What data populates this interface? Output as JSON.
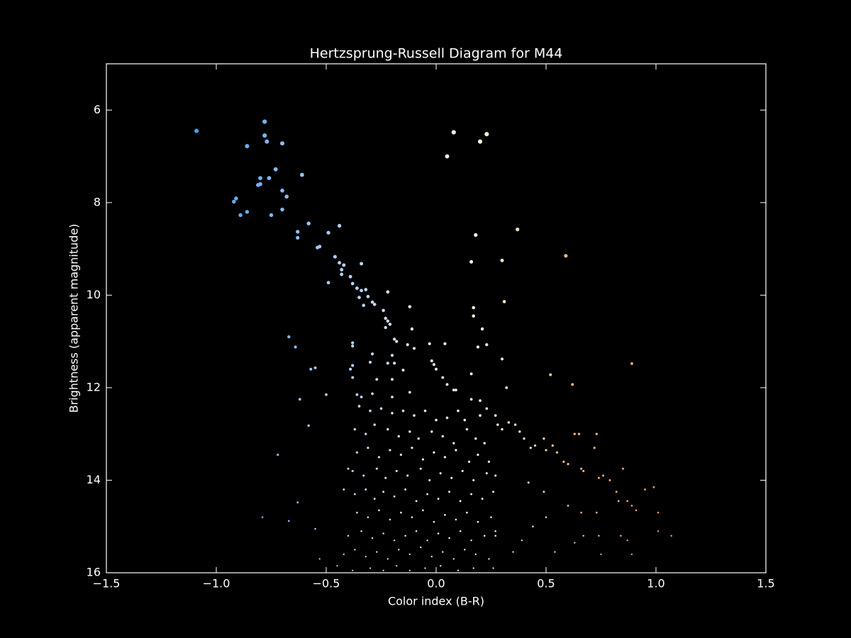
{
  "chart_data": {
    "type": "scatter",
    "title": "Hertzsprung-Russell Diagram for M44",
    "xlabel": "Color index (B-R)",
    "ylabel": "Brightness (apparent magnitude)",
    "xlim": [
      -1.5,
      1.5
    ],
    "ylim": [
      5,
      16
    ],
    "y_inverted": true,
    "xticks": [
      {
        "value": -1.5,
        "label": "−1.5"
      },
      {
        "value": -1.0,
        "label": "−1.0"
      },
      {
        "value": -0.5,
        "label": "−0.5"
      },
      {
        "value": 0,
        "label": "0.0"
      },
      0.5,
      {
        "value": 1.0,
        "label": "1.0"
      },
      1.5
    ],
    "yticks": [
      6,
      8,
      10,
      12,
      14,
      16
    ],
    "background": "#000000",
    "foreground": "#ffffff",
    "colormap": [
      {
        "value": -1.1,
        "color": "#4a98f0"
      },
      {
        "value": -0.4,
        "color": "#b4d2f2"
      },
      {
        "value": 0.0,
        "color": "#e8e8ee"
      },
      {
        "value": 0.2,
        "color": "#fff0da"
      },
      {
        "value": 0.6,
        "color": "#f2b888"
      },
      {
        "value": 1.0,
        "color": "#e08e52"
      }
    ],
    "x": [
      -1.09,
      -0.78,
      -0.78,
      -0.77,
      -0.86,
      -0.7,
      0.08,
      0.23,
      0.2,
      0.05,
      -0.73,
      -0.61,
      -0.8,
      -0.76,
      -0.81,
      -0.8,
      -0.7,
      -0.68,
      -0.91,
      -0.92,
      -0.86,
      -0.89,
      -0.75,
      -0.7,
      -0.58,
      -0.44,
      -0.49,
      -0.63,
      -0.63,
      -0.54,
      -0.53,
      0.37,
      0.18,
      0.59,
      -0.46,
      -0.44,
      -0.42,
      -0.43,
      -0.43,
      -0.34,
      0.16,
      0.3,
      -0.39,
      -0.38,
      -0.49,
      -0.36,
      -0.34,
      -0.32,
      -0.35,
      -0.31,
      -0.22,
      -0.29,
      -0.33,
      -0.28,
      0.31,
      -0.12,
      0.17,
      -0.24,
      0.17,
      -0.23,
      -0.22,
      -0.21,
      -0.23,
      0.21,
      -0.11,
      -0.67,
      -0.19,
      -0.18,
      -0.64,
      -0.38,
      -0.38,
      -0.13,
      -0.1,
      -0.03,
      0.04,
      0.23,
      0.19,
      -0.29,
      -0.2,
      0.3,
      0.89,
      -0.02,
      -0.57,
      -0.55,
      -0.38,
      -0.39,
      -0.3,
      -0.22,
      -0.19,
      -0.01,
      0.0,
      0.52,
      0.16,
      -0.15,
      -0.2,
      -0.38,
      -0.27,
      0.03,
      0.05,
      0.62,
      0.32,
      -0.62,
      -0.5,
      -0.36,
      -0.34,
      -0.29,
      -0.12,
      -0.2,
      0.09,
      0.08,
      0.16,
      0.2,
      -0.58,
      -0.72,
      -0.4,
      -0.42,
      -0.63,
      -0.79,
      -0.67,
      -0.55,
      0.27,
      0.28,
      0.3,
      0.33,
      0.36,
      0.38,
      0.4,
      0.43,
      0.45,
      0.49,
      0.5,
      0.53,
      0.55,
      0.58,
      0.6,
      0.63,
      0.65,
      0.66,
      0.67,
      0.72,
      0.73,
      0.74,
      0.76,
      0.79,
      0.82,
      0.83,
      0.85,
      0.87,
      0.89,
      0.91,
      0.95,
      0.99,
      1.01,
      1.01,
      1.07,
      0.74,
      0.66,
      0.73,
      0.49,
      0.42,
      0.44,
      0.5,
      0.6,
      0.63,
      0.67,
      0.75,
      0.87,
      0.89,
      0.84,
      0.39,
      0.54,
      0.35,
      0.27,
      -0.35,
      -0.3,
      -0.25,
      -0.2,
      -0.15,
      -0.1,
      -0.05,
      0.0,
      0.05,
      0.1,
      0.13,
      0.2,
      0.23,
      -0.37,
      -0.32,
      -0.28,
      -0.22,
      -0.17,
      -0.12,
      -0.08,
      -0.02,
      0.03,
      0.08,
      0.14,
      0.18,
      0.22,
      -0.36,
      -0.31,
      -0.26,
      -0.21,
      -0.16,
      -0.11,
      -0.06,
      -0.01,
      0.04,
      0.09,
      0.15,
      0.19,
      0.24,
      -0.38,
      -0.33,
      -0.27,
      -0.23,
      -0.18,
      -0.13,
      -0.07,
      -0.03,
      0.02,
      0.07,
      0.12,
      0.17,
      0.23,
      0.27,
      -0.37,
      -0.32,
      -0.28,
      -0.24,
      -0.19,
      -0.14,
      -0.09,
      -0.04,
      0.01,
      0.06,
      0.11,
      0.16,
      0.21,
      0.26,
      -0.36,
      -0.31,
      -0.26,
      -0.21,
      -0.16,
      -0.11,
      -0.06,
      -0.01,
      0.04,
      0.09,
      0.14,
      0.19,
      0.25,
      -0.4,
      -0.34,
      -0.29,
      -0.24,
      -0.19,
      -0.14,
      -0.09,
      -0.04,
      0.01,
      0.06,
      0.11,
      0.16,
      0.22,
      0.27,
      -0.42,
      -0.37,
      -0.32,
      -0.27,
      -0.22,
      -0.17,
      -0.12,
      -0.07,
      -0.02,
      0.03,
      0.08,
      0.13,
      0.18,
      0.24,
      -0.53,
      -0.45,
      -0.38,
      -0.3,
      -0.24,
      -0.18,
      -0.12,
      -0.05,
      0.02,
      0.1,
      0.17,
      0.26
    ],
    "y": [
      6.45,
      6.25,
      6.55,
      6.68,
      6.78,
      6.72,
      6.48,
      6.52,
      6.68,
      7.0,
      7.28,
      7.4,
      7.47,
      7.47,
      7.62,
      7.6,
      7.74,
      7.87,
      7.91,
      7.98,
      8.2,
      8.27,
      8.27,
      8.15,
      8.45,
      8.5,
      8.65,
      8.63,
      8.76,
      8.97,
      8.95,
      8.58,
      8.7,
      9.15,
      9.17,
      9.3,
      9.35,
      9.45,
      9.55,
      9.32,
      9.28,
      9.25,
      9.6,
      9.75,
      9.73,
      9.85,
      9.9,
      9.88,
      10.05,
      10.03,
      9.93,
      10.15,
      10.22,
      10.2,
      10.14,
      10.25,
      10.27,
      10.33,
      10.45,
      10.5,
      10.56,
      10.63,
      10.7,
      10.73,
      10.73,
      10.9,
      10.95,
      11.0,
      11.12,
      11.03,
      11.1,
      11.07,
      11.15,
      11.05,
      11.05,
      11.07,
      11.12,
      11.27,
      11.3,
      11.38,
      11.48,
      11.42,
      11.6,
      11.57,
      11.52,
      11.6,
      11.45,
      11.47,
      11.47,
      11.5,
      11.6,
      11.72,
      11.7,
      11.62,
      11.82,
      11.78,
      11.82,
      11.78,
      11.93,
      11.93,
      12.0,
      12.25,
      12.15,
      12.15,
      12.2,
      12.13,
      12.1,
      12.2,
      12.05,
      12.05,
      12.25,
      12.28,
      12.82,
      13.45,
      13.75,
      14.2,
      14.48,
      14.8,
      14.88,
      15.05,
      12.6,
      12.8,
      12.9,
      12.75,
      12.8,
      12.95,
      13.1,
      13.3,
      13.25,
      13.1,
      13.35,
      13.25,
      13.4,
      13.6,
      13.65,
      13.0,
      13.0,
      13.75,
      13.8,
      13.3,
      13.0,
      13.95,
      13.9,
      14.0,
      14.25,
      14.45,
      13.75,
      14.45,
      14.55,
      14.65,
      14.2,
      14.15,
      14.7,
      15.1,
      15.2,
      15.2,
      14.7,
      14.7,
      14.25,
      14.05,
      15.0,
      14.8,
      14.55,
      15.35,
      15.2,
      15.6,
      15.3,
      15.6,
      15.2,
      15.3,
      15.55,
      15.55,
      15.2,
      12.4,
      12.5,
      12.45,
      12.55,
      12.5,
      12.6,
      12.5,
      12.7,
      12.65,
      12.5,
      12.7,
      12.6,
      12.45,
      12.9,
      13.0,
      12.8,
      12.9,
      13.05,
      12.95,
      13.1,
      12.95,
      13.05,
      13.2,
      12.9,
      13.1,
      13.2,
      13.4,
      13.3,
      13.5,
      13.35,
      13.45,
      13.3,
      13.55,
      13.4,
      13.5,
      13.35,
      13.6,
      13.45,
      13.6,
      13.8,
      13.9,
      13.75,
      13.95,
      13.8,
      13.9,
      13.75,
      14.0,
      13.85,
      13.95,
      13.8,
      14.0,
      13.85,
      13.9,
      14.3,
      14.2,
      14.4,
      14.25,
      14.35,
      14.2,
      14.45,
      14.3,
      14.4,
      14.25,
      14.45,
      14.3,
      14.4,
      14.25,
      14.7,
      14.8,
      14.65,
      14.85,
      14.7,
      14.8,
      14.65,
      14.9,
      14.75,
      14.85,
      14.7,
      14.9,
      14.8,
      15.2,
      15.1,
      15.25,
      15.15,
      15.3,
      15.2,
      15.1,
      15.3,
      15.15,
      15.25,
      15.1,
      15.3,
      15.2,
      15.1,
      15.6,
      15.5,
      15.65,
      15.55,
      15.7,
      15.5,
      15.6,
      15.45,
      15.65,
      15.55,
      15.7,
      15.5,
      15.6,
      15.7,
      15.7,
      15.85,
      15.95,
      15.9,
      15.95,
      15.85,
      15.95,
      15.9,
      15.85,
      15.95,
      15.9,
      15.9
    ]
  }
}
